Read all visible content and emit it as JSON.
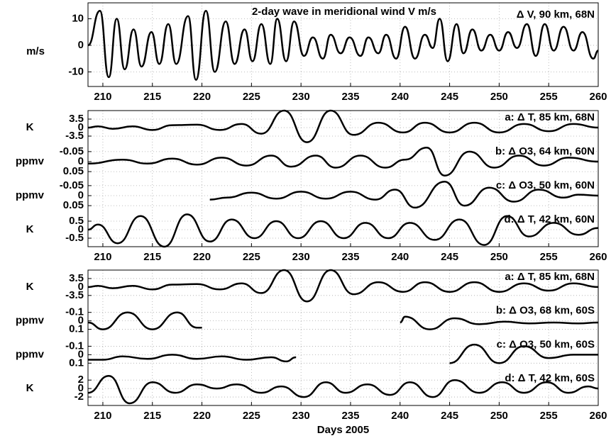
{
  "chart_data": [
    {
      "type": "line",
      "title": "2-day wave in meridional wind V m/s",
      "annotation": "Δ V, 90 km, 68N",
      "ylabel": "m/s",
      "xlim": [
        208.5,
        260
      ],
      "xticks": [
        210,
        215,
        220,
        225,
        230,
        235,
        240,
        245,
        250,
        255,
        260
      ],
      "ylim": [
        -15.5,
        16
      ],
      "yticks": [
        -10,
        0,
        10
      ],
      "grid": true,
      "color": "#000000",
      "x": [
        208.5,
        209.7,
        210.6,
        211.4,
        212.2,
        213.1,
        213.9,
        214.9,
        215.7,
        216.6,
        217.4,
        218.6,
        219.4,
        220.4,
        221.3,
        222.4,
        223.3,
        224.3,
        225.1,
        226.0,
        226.9,
        227.6,
        228.5,
        229.3,
        230.3,
        231.2,
        232.2,
        233.0,
        234.0,
        234.9,
        236.0,
        236.8,
        237.8,
        238.6,
        239.6,
        240.5,
        241.5,
        242.5,
        243.3,
        244.0,
        244.8,
        245.7,
        246.4,
        247.3,
        248.2,
        249.1,
        250.0,
        250.9,
        251.8,
        252.8,
        253.7,
        254.6,
        255.5,
        256.5,
        257.5,
        258.4,
        259.5,
        260.0
      ],
      "values": [
        0,
        13,
        -12,
        10,
        -9,
        6,
        -8,
        5,
        -7,
        8,
        -7,
        11,
        -13,
        13,
        -10,
        9,
        -7,
        6,
        -6,
        8,
        -7,
        10,
        -6,
        9,
        -4,
        3,
        -5,
        4,
        -3,
        3,
        -4,
        3,
        -3,
        4,
        -5,
        7,
        -5,
        4,
        -1,
        10,
        -6,
        8,
        -3,
        6,
        -2,
        4,
        -2,
        5,
        -1,
        8,
        -4,
        8,
        -2,
        7,
        -2,
        5,
        -5,
        -2
      ]
    },
    {
      "type": "multi_axis_line",
      "xlim": [
        208.5,
        260
      ],
      "xticks": [
        210,
        215,
        220,
        225,
        230,
        235,
        240,
        245,
        250,
        255,
        260
      ],
      "grid": true,
      "color": "#000000",
      "series": [
        {
          "name": "a: Δ T, 85 km, 68N",
          "ylabel": "K",
          "ylim": [
            -7,
            7
          ],
          "yticks": [
            3.5,
            0,
            -3.5
          ],
          "x": [
            208.5,
            209.5,
            211,
            213,
            215,
            217,
            219.5,
            221.8,
            224,
            226,
            228.3,
            230.6,
            233,
            235.3,
            237.8,
            240.3,
            242.5,
            245,
            247.5,
            250,
            252.5,
            255,
            257.5,
            260
          ],
          "values": [
            0,
            0.5,
            -0.5,
            0.5,
            -1,
            1,
            1.2,
            -1,
            1.5,
            -2.5,
            7,
            -6,
            7,
            -3,
            2,
            -2,
            2,
            -2,
            2,
            -2,
            1.5,
            -1.5,
            1.5,
            0
          ]
        },
        {
          "name": "b: Δ O3, 64 km, 60N",
          "ylabel": "ppmv",
          "ylim": [
            0.085,
            -0.085
          ],
          "yticks": [
            -0.05,
            0,
            0.05
          ],
          "x": [
            208.5,
            212,
            214.5,
            217,
            219.5,
            222,
            224.5,
            227,
            229,
            231.5,
            233.5,
            236,
            238.5,
            240.5,
            242.7,
            244.5,
            247,
            249.5,
            252,
            254.5,
            257,
            260
          ],
          "values": [
            0.01,
            -0.01,
            0.01,
            -0.015,
            0.015,
            -0.02,
            0.02,
            -0.03,
            0.025,
            -0.03,
            0.03,
            -0.03,
            0.03,
            -0.01,
            -0.07,
            0.07,
            -0.05,
            0.03,
            -0.03,
            0.02,
            -0.02,
            0
          ]
        },
        {
          "name": "c: Δ O3, 50 km, 60N",
          "ylabel": "ppmv",
          "ylim": [
            0.085,
            -0.085
          ],
          "yticks": [
            -0.05,
            0,
            0.05
          ],
          "x": [
            220.8,
            222.5,
            225,
            227.5,
            230,
            232.5,
            235,
            237.5,
            239.5,
            241.5,
            244.5,
            246.5,
            249,
            251.5,
            254,
            256.5,
            258,
            260
          ],
          "values": [
            0.02,
            0.01,
            -0.015,
            0.015,
            -0.02,
            0.015,
            -0.02,
            0.02,
            -0.03,
            0.06,
            -0.07,
            0.05,
            -0.04,
            0.03,
            -0.03,
            0.01,
            -0.005,
            0
          ]
        },
        {
          "name": "d: Δ T, 42 km, 60N",
          "ylabel": "K",
          "ylim": [
            -1,
            1
          ],
          "yticks": [
            0.5,
            0,
            -0.5
          ],
          "x": [
            208.5,
            209.5,
            211.5,
            213.8,
            216.2,
            218.5,
            220.8,
            223,
            225.3,
            227.5,
            229.7,
            232,
            234.3,
            236.5,
            238.8,
            241,
            243.5,
            246,
            248.5,
            250.8,
            253,
            255.5,
            258,
            260
          ],
          "values": [
            0,
            0.3,
            -0.8,
            0.8,
            -1,
            0.9,
            -0.7,
            0.6,
            -0.5,
            0.5,
            -0.5,
            0.5,
            -0.5,
            0.4,
            -0.5,
            0.4,
            -0.6,
            0.6,
            -0.9,
            0.8,
            -0.4,
            0.4,
            -0.3,
            0.1
          ]
        }
      ]
    },
    {
      "type": "multi_axis_line",
      "xlabel": "Days 2005",
      "xlim": [
        208.5,
        260
      ],
      "xticks": [
        210,
        215,
        220,
        225,
        230,
        235,
        240,
        245,
        250,
        255,
        260
      ],
      "grid": true,
      "color": "#000000",
      "series": [
        {
          "name": "a: Δ T, 85 km, 68N",
          "ylabel": "K",
          "ylim": [
            -7,
            7
          ],
          "yticks": [
            3.5,
            0,
            -3.5
          ],
          "x": [
            208.5,
            209.5,
            211,
            213,
            215,
            217,
            219.5,
            221.8,
            224,
            226,
            228.3,
            230.6,
            233,
            235.3,
            237.8,
            240.3,
            242.5,
            245,
            247.5,
            250,
            252.5,
            255,
            257.5,
            260
          ],
          "values": [
            0,
            0.5,
            -0.5,
            0.5,
            -1,
            1,
            1.2,
            -1,
            1.5,
            -2.5,
            7,
            -6,
            7,
            -3,
            2,
            -2,
            2,
            -2,
            2,
            -2,
            1.5,
            -1.5,
            1.5,
            0
          ]
        },
        {
          "name": "b: Δ O3, 68 km, 60S",
          "ylabel": "ppmv",
          "ylim": [
            0.2,
            -0.2
          ],
          "yticks": [
            -0.1,
            0,
            0.1
          ],
          "x": [
            208.5,
            210,
            212.5,
            215,
            217.5,
            219.5,
            220,
            null,
            240,
            240.5,
            243,
            245.5,
            248,
            250.5,
            253,
            255.5,
            258,
            260
          ],
          "values": [
            0.02,
            0.1,
            -0.1,
            0.1,
            -0.1,
            0.08,
            0.08,
            null,
            0.02,
            -0.05,
            0.1,
            -0.03,
            0.04,
            0.01,
            0.03,
            0.02,
            0.03,
            0.02
          ]
        },
        {
          "name": "c: Δ O3, 50 km, 60S",
          "ylabel": "ppmv",
          "ylim": [
            0.2,
            -0.2
          ],
          "yticks": [
            -0.1,
            0,
            0.1
          ],
          "x": [
            208.5,
            210,
            212,
            214.5,
            217,
            219.5,
            222,
            224.5,
            227,
            228.5,
            229.5,
            null,
            245,
            247.5,
            250,
            252.5,
            255,
            257.5,
            260
          ],
          "values": [
            0.06,
            0.06,
            0.02,
            0.05,
            0,
            0.05,
            0.02,
            0.06,
            0.03,
            0.08,
            0.03,
            null,
            0.1,
            -0.12,
            0.1,
            -0.1,
            0.04,
            0,
            0
          ]
        },
        {
          "name": "d: Δ T, 42 km, 60S",
          "ylabel": "K",
          "ylim": [
            -4,
            4
          ],
          "yticks": [
            2,
            0,
            -2
          ],
          "x": [
            208.5,
            210.6,
            212.7,
            215,
            217.3,
            219.5,
            221.5,
            223.5,
            226,
            228,
            230.3,
            232.5,
            234.5,
            236.7,
            239,
            241,
            243.3,
            245.5,
            248,
            250.3,
            252.5,
            254.8,
            257,
            259,
            260
          ],
          "values": [
            -1,
            3,
            -3.5,
            1.5,
            -1,
            1,
            0,
            1,
            -1,
            0.5,
            -2,
            1.5,
            -1,
            1,
            -1.5,
            1.5,
            -2,
            2,
            -1,
            1.5,
            -1,
            1.5,
            -1,
            0.5,
            0
          ]
        }
      ]
    }
  ]
}
